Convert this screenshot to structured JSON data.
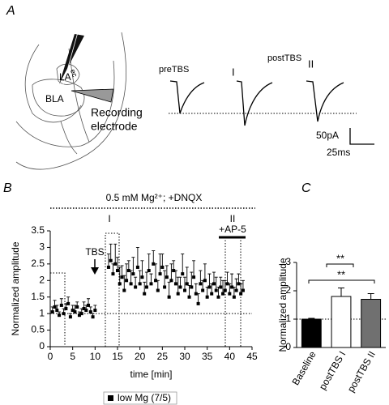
{
  "panel_a": {
    "label": "A",
    "region_labels": [
      "LA",
      "ec",
      "BLA"
    ],
    "electrode_label": [
      "Recording",
      "electrode"
    ],
    "trace_labels": {
      "pre": "preTBS",
      "post": "postTBS",
      "post_1": "I",
      "post_2": "II"
    },
    "scale_bar": {
      "current": "50pA",
      "time": "25ms"
    }
  },
  "chart_data": [
    {
      "type": "scatter",
      "panel_label": "B",
      "condition": "0.5 mM Mg²⁺; +DNQX",
      "annotations": [
        "TBS",
        "I",
        "II",
        "+AP-5"
      ],
      "x_label": "time [min]",
      "y_label": "Normalized amplitude",
      "x": [
        0.5,
        1,
        1.5,
        2,
        2.5,
        3,
        3.5,
        4,
        4.5,
        5,
        5.5,
        6,
        6.5,
        7,
        7.5,
        8,
        8.5,
        9,
        9.5,
        10,
        13,
        13.5,
        14,
        14.5,
        15,
        15.5,
        16,
        16.5,
        17,
        17.5,
        18,
        18.5,
        19,
        19.5,
        20,
        20.5,
        21,
        21.5,
        22,
        22.5,
        23,
        23.5,
        24,
        24.5,
        25,
        25.5,
        26,
        26.5,
        27,
        27.5,
        28,
        28.5,
        29,
        29.5,
        30,
        30.5,
        31,
        31.5,
        32,
        32.5,
        33,
        33.5,
        34,
        34.5,
        35,
        35.5,
        36,
        36.5,
        37,
        37.5,
        38,
        38.5,
        39,
        39.5,
        40,
        40.5,
        41,
        41.5,
        42,
        42.5,
        43
      ],
      "series": [
        {
          "name": "low Mg (7/5)",
          "color": "#000000",
          "values": [
            1.05,
            1.2,
            1.1,
            0.95,
            1.25,
            1.0,
            1.15,
            1.3,
            0.9,
            1.1,
            1.05,
            1.2,
            0.95,
            1.0,
            1.15,
            1.1,
            1.25,
            1.05,
            0.9,
            1.1,
            2.4,
            2.6,
            2.2,
            2.5,
            2.3,
            1.9,
            2.1,
            1.7,
            2.0,
            2.3,
            1.9,
            2.2,
            1.8,
            2.4,
            1.9,
            2.1,
            1.6,
            1.8,
            2.3,
            1.9,
            2.5,
            2.0,
            1.7,
            2.2,
            2.4,
            1.8,
            2.1,
            1.5,
            2.0,
            2.3,
            1.9,
            1.6,
            1.8,
            2.2,
            1.7,
            1.9,
            1.5,
            1.8,
            2.1,
            1.6,
            1.3,
            1.9,
            1.7,
            2.0,
            1.5,
            1.8,
            1.6,
            1.9,
            1.7,
            1.5,
            1.8,
            1.6,
            1.7,
            1.9,
            1.6,
            1.8,
            1.5,
            1.7,
            1.9,
            1.6,
            1.7
          ],
          "errors": [
            0.15,
            0.2,
            0.15,
            0.1,
            0.2,
            0.15,
            0.15,
            0.2,
            0.1,
            0.15,
            0.2,
            0.15,
            0.1,
            0.15,
            0.2,
            0.15,
            0.2,
            0.15,
            0.1,
            0.15,
            0.4,
            0.5,
            0.3,
            0.6,
            0.4,
            0.5,
            0.35,
            0.45,
            0.5,
            0.3,
            0.4,
            0.5,
            0.3,
            0.6,
            0.4,
            0.5,
            0.35,
            0.45,
            0.5,
            0.3,
            0.4,
            0.5,
            0.3,
            0.6,
            0.4,
            0.5,
            0.35,
            0.45,
            0.5,
            0.3,
            0.4,
            0.5,
            0.3,
            0.6,
            0.4,
            0.5,
            0.35,
            0.45,
            0.5,
            0.3,
            0.3,
            0.4,
            0.3,
            0.5,
            0.3,
            0.4,
            0.3,
            0.35,
            0.4,
            0.3,
            0.3,
            0.4,
            0.3,
            0.35,
            0.3,
            0.4,
            0.3,
            0.35,
            0.3,
            0.3,
            0.3
          ]
        }
      ],
      "xlim": [
        0,
        45
      ],
      "xticks": [
        0,
        5,
        10,
        15,
        20,
        25,
        30,
        35,
        40,
        45
      ],
      "ylim": [
        0,
        3.5
      ],
      "yticks": [
        0,
        0.5,
        1,
        1.5,
        2,
        2.5,
        3,
        3.5
      ],
      "reference_line": 1
    },
    {
      "type": "bar",
      "panel_label": "C",
      "y_label": "Normalized amplitude",
      "categories": [
        "Baseline",
        "postTBS I",
        "postTBS II"
      ],
      "values": [
        1,
        1.8,
        1.7
      ],
      "errors": [
        0.03,
        0.3,
        0.2
      ],
      "colors": [
        "#000000",
        "#ffffff",
        "#707070"
      ],
      "ylim": [
        0,
        3
      ],
      "yticks": [
        0,
        1,
        2,
        3
      ],
      "reference_line": 1,
      "significance": [
        "**",
        "**"
      ]
    }
  ]
}
